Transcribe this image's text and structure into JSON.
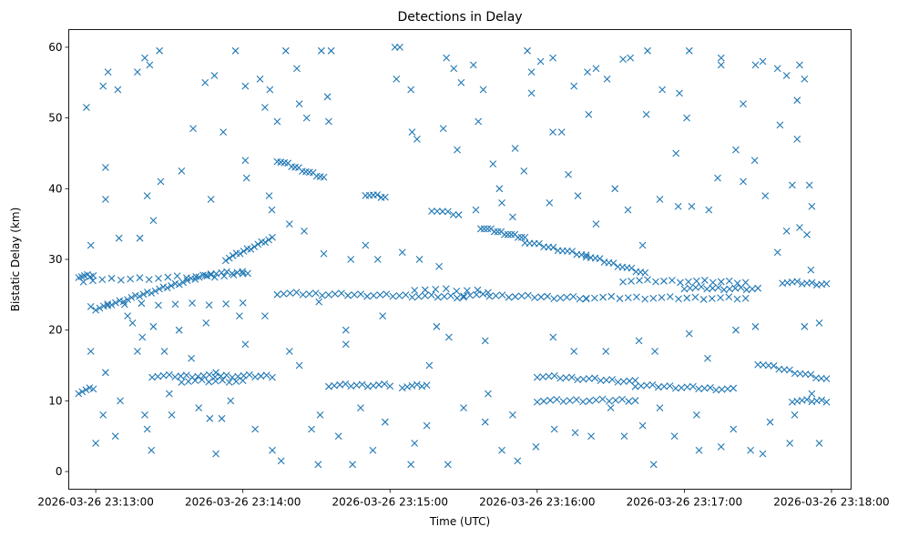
{
  "chart_data": {
    "type": "scatter",
    "title": "Detections in Delay",
    "xlabel": "Time (UTC)",
    "ylabel": "Bistatic Delay (km)",
    "x_unit": "seconds since 2026-03-26 23:13:00",
    "xlim": [
      -11,
      308
    ],
    "ylim": [
      -2.5,
      62.5
    ],
    "grid": false,
    "marker": "x",
    "color": "#1f77b4",
    "xticks": [
      0,
      60,
      120,
      180,
      240,
      300
    ],
    "xtick_labels": [
      "2026-03-26 23:13:00",
      "2026-03-26 23:14:00",
      "2026-03-26 23:15:00",
      "2026-03-26 23:16:00",
      "2026-03-26 23:17:00",
      "2026-03-26 23:18:00"
    ],
    "yticks": [
      0,
      10,
      20,
      30,
      40,
      50,
      60
    ],
    "ytick_labels": [
      "0",
      "10",
      "20",
      "30",
      "40",
      "50",
      "60"
    ],
    "tracks": [
      [
        -7,
        27.6,
        -1,
        27.7,
        6
      ],
      [
        -7,
        11.2,
        -1,
        11.8,
        5
      ],
      [
        0,
        23,
        47,
        28,
        30
      ],
      [
        47,
        28,
        62,
        28.2,
        8
      ],
      [
        53,
        30,
        72,
        33,
        14
      ],
      [
        74,
        44,
        93,
        41.5,
        14
      ],
      [
        110,
        39.2,
        118,
        38.8,
        6
      ],
      [
        137,
        37,
        148,
        36.3,
        6
      ],
      [
        157,
        34.5,
        175,
        33,
        14
      ],
      [
        175,
        32.5,
        200,
        30.5,
        14
      ],
      [
        200,
        30.5,
        224,
        28,
        14
      ],
      [
        74,
        25.2,
        150,
        24.7,
        30
      ],
      [
        150,
        25,
        200,
        24.5,
        20
      ],
      [
        200,
        24.6,
        265,
        24.5,
        20
      ],
      [
        130,
        25.8,
        160,
        25.5,
        8
      ],
      [
        215,
        27,
        265,
        26.8,
        16
      ],
      [
        240,
        26,
        270,
        25.8,
        14
      ],
      [
        280,
        26.8,
        298,
        26.5,
        10
      ],
      [
        -5,
        27,
        60,
        27.8,
        18
      ],
      [
        23,
        13.5,
        72,
        13.5,
        22
      ],
      [
        35,
        12.8,
        60,
        12.8,
        10
      ],
      [
        95,
        12.2,
        120,
        12.2,
        12
      ],
      [
        125,
        12,
        135,
        12.2,
        6
      ],
      [
        180,
        13.5,
        220,
        12.7,
        18
      ],
      [
        220,
        12.2,
        260,
        11.6,
        18
      ],
      [
        270,
        15.3,
        298,
        13,
        14
      ],
      [
        284,
        10,
        298,
        10,
        8
      ],
      [
        180,
        10,
        220,
        10.1,
        16
      ],
      [
        -2,
        23.5,
        60,
        23.8,
        10
      ]
    ],
    "points": [
      [
        -3.8,
        51.5
      ],
      [
        -2,
        32
      ],
      [
        -2,
        17
      ],
      [
        0,
        4
      ],
      [
        3,
        54.5
      ],
      [
        5,
        56.5
      ],
      [
        4,
        43
      ],
      [
        4,
        38.5
      ],
      [
        9,
        54
      ],
      [
        3,
        8
      ],
      [
        4,
        14
      ],
      [
        8,
        5
      ],
      [
        9.5,
        33
      ],
      [
        17,
        56.5
      ],
      [
        20,
        58.5
      ],
      [
        22,
        57.5
      ],
      [
        26,
        59.5
      ],
      [
        21,
        39
      ],
      [
        23.5,
        35.5
      ],
      [
        18,
        33
      ],
      [
        26.5,
        41
      ],
      [
        22.7,
        3
      ],
      [
        21,
        6
      ],
      [
        31,
        8
      ],
      [
        35,
        42.5
      ],
      [
        39.7,
        48.5
      ],
      [
        44.6,
        55
      ],
      [
        48.4,
        56
      ],
      [
        52,
        48
      ],
      [
        47,
        38.5
      ],
      [
        49,
        2.5
      ],
      [
        51.4,
        7.5
      ],
      [
        46.5,
        7.5
      ],
      [
        57,
        59.5
      ],
      [
        61,
        54.5
      ],
      [
        67,
        55.5
      ],
      [
        69,
        51.5
      ],
      [
        71,
        54
      ],
      [
        74,
        49.5
      ],
      [
        77.5,
        59.5
      ],
      [
        82,
        57
      ],
      [
        83,
        52
      ],
      [
        86,
        50
      ],
      [
        92,
        59.5
      ],
      [
        96,
        59.5
      ],
      [
        94.5,
        53
      ],
      [
        95,
        49.5
      ],
      [
        61,
        44
      ],
      [
        61.5,
        41.5
      ],
      [
        70.7,
        39
      ],
      [
        71.8,
        37
      ],
      [
        75.6,
        1.5
      ],
      [
        90.7,
        1
      ],
      [
        104.7,
        1
      ],
      [
        113,
        3
      ],
      [
        91.5,
        8
      ],
      [
        99,
        5
      ],
      [
        83,
        15
      ],
      [
        102,
        20
      ],
      [
        122,
        60
      ],
      [
        124,
        60
      ],
      [
        122.6,
        55.5
      ],
      [
        128.5,
        54
      ],
      [
        129,
        48
      ],
      [
        131,
        47
      ],
      [
        143,
        58.5
      ],
      [
        146,
        57
      ],
      [
        149,
        55
      ],
      [
        154,
        57.5
      ],
      [
        158,
        54
      ],
      [
        156,
        49.5
      ],
      [
        147.4,
        45.5
      ],
      [
        141.7,
        48.5
      ],
      [
        162,
        43.5
      ],
      [
        165.6,
        38
      ],
      [
        171,
        45.7
      ],
      [
        174.6,
        42.5
      ],
      [
        176,
        59.5
      ],
      [
        177.7,
        56.5
      ],
      [
        177.7,
        53.5
      ],
      [
        181.4,
        58
      ],
      [
        186.4,
        58.5
      ],
      [
        186.4,
        48
      ],
      [
        190,
        48
      ],
      [
        195,
        54.5
      ],
      [
        200.5,
        56.5
      ],
      [
        201,
        50.5
      ],
      [
        204,
        57
      ],
      [
        208.5,
        55.5
      ],
      [
        215,
        58.3
      ],
      [
        218,
        58.5
      ],
      [
        225,
        59.5
      ],
      [
        224.5,
        50.5
      ],
      [
        231,
        54
      ],
      [
        238,
        53.5
      ],
      [
        242,
        59.5
      ],
      [
        241,
        50
      ],
      [
        236.6,
        45
      ],
      [
        255,
        58.5
      ],
      [
        255,
        57.5
      ],
      [
        264,
        52
      ],
      [
        269,
        57.5
      ],
      [
        272,
        58
      ],
      [
        278,
        57
      ],
      [
        281.7,
        56
      ],
      [
        287,
        57.5
      ],
      [
        289,
        55.5
      ],
      [
        286,
        52.5
      ],
      [
        279,
        49
      ],
      [
        286,
        47
      ],
      [
        291,
        40.5
      ],
      [
        284,
        40.5
      ],
      [
        292,
        37.5
      ],
      [
        295,
        4
      ],
      [
        283,
        4
      ],
      [
        272,
        2.5
      ],
      [
        267,
        3
      ],
      [
        255,
        3.5
      ],
      [
        246,
        3
      ],
      [
        236,
        5
      ],
      [
        227.5,
        1
      ],
      [
        223,
        6.5
      ],
      [
        215.5,
        5
      ],
      [
        202,
        5
      ],
      [
        195.5,
        5.5
      ],
      [
        187,
        6
      ],
      [
        179.5,
        3.5
      ],
      [
        172,
        1.5
      ],
      [
        165.6,
        3
      ],
      [
        158.8,
        7
      ],
      [
        143.6,
        1
      ],
      [
        135,
        6.5
      ],
      [
        128.5,
        1
      ],
      [
        130,
        4
      ],
      [
        139,
        20.5
      ],
      [
        136,
        15
      ],
      [
        144,
        19
      ],
      [
        158.8,
        18.5
      ],
      [
        186.5,
        19
      ],
      [
        195,
        17
      ],
      [
        208,
        17
      ],
      [
        221.5,
        18.5
      ],
      [
        228,
        17
      ],
      [
        242,
        19.5
      ],
      [
        249.5,
        16
      ],
      [
        261,
        20
      ],
      [
        269,
        20.5
      ],
      [
        289,
        20.5
      ],
      [
        295,
        21
      ],
      [
        117,
        22
      ],
      [
        102,
        18
      ],
      [
        91,
        24
      ],
      [
        58.6,
        22
      ],
      [
        45,
        21
      ],
      [
        34,
        20
      ],
      [
        28,
        17
      ],
      [
        39,
        16
      ],
      [
        49,
        14
      ],
      [
        61,
        18
      ],
      [
        69,
        22
      ],
      [
        79,
        17
      ],
      [
        13,
        22
      ],
      [
        15,
        21
      ],
      [
        17,
        17
      ],
      [
        19,
        19
      ],
      [
        23.5,
        20.5
      ],
      [
        79,
        35
      ],
      [
        85,
        34
      ],
      [
        93,
        30.8
      ],
      [
        104,
        30
      ],
      [
        110,
        32
      ],
      [
        115,
        30
      ],
      [
        125,
        31
      ],
      [
        132,
        30
      ],
      [
        140,
        29
      ],
      [
        155,
        37
      ],
      [
        164.6,
        40
      ],
      [
        170,
        36
      ],
      [
        185,
        38
      ],
      [
        192.7,
        42
      ],
      [
        196.6,
        39
      ],
      [
        204,
        35
      ],
      [
        211.7,
        40
      ],
      [
        217,
        37
      ],
      [
        223,
        32
      ],
      [
        230,
        38.5
      ],
      [
        237.5,
        37.5
      ],
      [
        243,
        37.5
      ],
      [
        250,
        37
      ],
      [
        253.6,
        41.5
      ],
      [
        261,
        45.5
      ],
      [
        264,
        41
      ],
      [
        268.7,
        44
      ],
      [
        273,
        39
      ],
      [
        281.7,
        34
      ],
      [
        287,
        34.5
      ],
      [
        290,
        33.5
      ],
      [
        278,
        31
      ],
      [
        291.6,
        28.5
      ],
      [
        10,
        10
      ],
      [
        20,
        8
      ],
      [
        30,
        11
      ],
      [
        42,
        9
      ],
      [
        55,
        10
      ],
      [
        65,
        6
      ],
      [
        72,
        3
      ],
      [
        88,
        6
      ],
      [
        108,
        9
      ],
      [
        118,
        7
      ],
      [
        150,
        9
      ],
      [
        160,
        11
      ],
      [
        170,
        8
      ],
      [
        210,
        9
      ],
      [
        230,
        9
      ],
      [
        245,
        8
      ],
      [
        260,
        6
      ],
      [
        275,
        7
      ],
      [
        285,
        8
      ],
      [
        292,
        11
      ]
    ]
  }
}
